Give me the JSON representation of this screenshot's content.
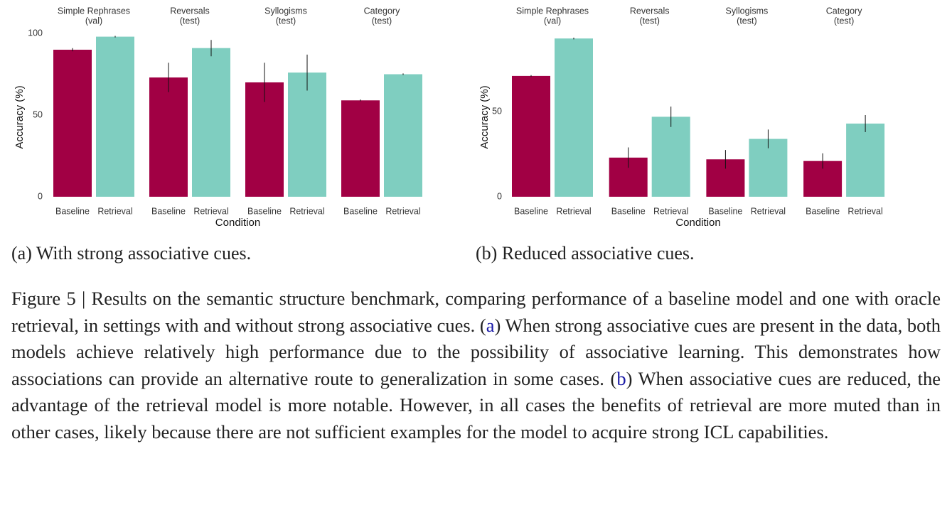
{
  "chart_data": [
    {
      "type": "bar",
      "caption": "(a) With strong associative cues.",
      "ylabel": "Accuracy (%)",
      "xlabel": "Condition",
      "categories": [
        "Baseline",
        "Retrieval"
      ],
      "colors": [
        "#a10044",
        "#7fcec0"
      ],
      "ylim": [
        0,
        100
      ],
      "yticks": [
        0,
        50,
        100
      ],
      "facets": [
        {
          "title": "Simple Rephrases",
          "split": "(val)",
          "values": [
            90,
            98
          ],
          "errors": [
            1,
            0.5
          ]
        },
        {
          "title": "Reversals",
          "split": "(test)",
          "values": [
            73,
            91
          ],
          "errors": [
            9,
            5
          ]
        },
        {
          "title": "Syllogisms",
          "split": "(test)",
          "values": [
            70,
            76
          ],
          "errors": [
            12,
            11
          ]
        },
        {
          "title": "Category",
          "split": "(test)",
          "values": [
            59,
            75
          ],
          "errors": [
            0.5,
            0.5
          ]
        }
      ]
    },
    {
      "type": "bar",
      "caption": "(b) Reduced associative cues.",
      "ylabel": "Accuracy (%)",
      "xlabel": "Condition",
      "categories": [
        "Baseline",
        "Retrieval"
      ],
      "colors": [
        "#a10044",
        "#7fcec0"
      ],
      "ylim": [
        0,
        96
      ],
      "yticks": [
        0,
        50
      ],
      "facets": [
        {
          "title": "Simple Rephrases",
          "split": "(val)",
          "values": [
            71,
            93
          ],
          "errors": [
            0.5,
            0.5
          ]
        },
        {
          "title": "Reversals",
          "split": "(test)",
          "values": [
            23,
            47
          ],
          "errors": [
            6,
            6
          ]
        },
        {
          "title": "Syllogisms",
          "split": "(test)",
          "values": [
            22,
            34
          ],
          "errors": [
            5.5,
            5.5
          ]
        },
        {
          "title": "Category",
          "split": "(test)",
          "values": [
            21,
            43
          ],
          "errors": [
            4.5,
            5
          ]
        }
      ]
    }
  ],
  "figure_caption": [
    "Figure 5 | Results on the semantic structure benchmark, comparing performance of a baseline model and one with oracle retrieval, in settings with and without strong associative cues. (",
    "a",
    ") When strong associative cues are present in the data, both models achieve relatively high performance due to the possibility of associative learning. This demonstrates how associations can provide an alternative route to generalization in some cases. (",
    "b",
    ") When associative cues are reduced, the advantage of the retrieval model is more notable. However, in all cases the benefits of retrieval are more muted than in other cases, likely because there are not sufficient examples for the model to acquire strong ICL capabilities."
  ]
}
